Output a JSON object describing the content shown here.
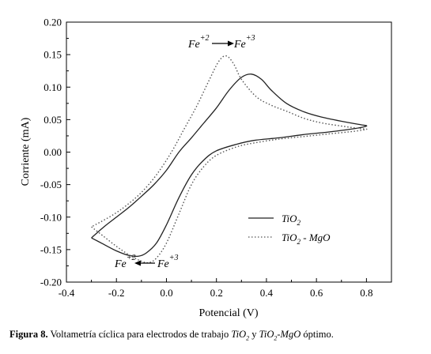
{
  "chart_data": {
    "type": "line",
    "xlabel": "Potencial (V)",
    "ylabel": "Corriente (mA)",
    "xlim": [
      -0.4,
      0.9
    ],
    "ylim": [
      -0.2,
      0.2
    ],
    "x_ticks": [
      -0.4,
      -0.2,
      0.0,
      0.2,
      0.4,
      0.6,
      0.8
    ],
    "y_ticks": [
      -0.2,
      -0.15,
      -0.1,
      -0.05,
      0.0,
      0.05,
      0.1,
      0.15,
      0.2
    ],
    "x_tick_labels": [
      "-0.4",
      "-0.2",
      "0.0",
      "0.2",
      "0.4",
      "0.6",
      "0.8"
    ],
    "y_tick_labels": [
      "-0.20",
      "-0.15",
      "-0.10",
      "-0.05",
      "0.00",
      "0.05",
      "0.10",
      "0.15",
      "0.20"
    ],
    "grid": false,
    "legend_position": "bottom-right",
    "series": [
      {
        "name": "TiO2",
        "style": "solid",
        "color": "#222222",
        "points": [
          [
            -0.3,
            -0.132
          ],
          [
            -0.26,
            -0.14
          ],
          [
            -0.2,
            -0.152
          ],
          [
            -0.15,
            -0.159
          ],
          [
            -0.11,
            -0.16
          ],
          [
            -0.08,
            -0.155
          ],
          [
            -0.04,
            -0.14
          ],
          [
            0.0,
            -0.112
          ],
          [
            0.05,
            -0.07
          ],
          [
            0.1,
            -0.035
          ],
          [
            0.15,
            -0.012
          ],
          [
            0.2,
            0.002
          ],
          [
            0.28,
            0.012
          ],
          [
            0.35,
            0.018
          ],
          [
            0.45,
            0.022
          ],
          [
            0.55,
            0.027
          ],
          [
            0.65,
            0.031
          ],
          [
            0.75,
            0.036
          ],
          [
            0.8,
            0.04
          ],
          [
            0.78,
            0.042
          ],
          [
            0.72,
            0.046
          ],
          [
            0.62,
            0.054
          ],
          [
            0.55,
            0.062
          ],
          [
            0.48,
            0.075
          ],
          [
            0.42,
            0.095
          ],
          [
            0.38,
            0.112
          ],
          [
            0.34,
            0.12
          ],
          [
            0.3,
            0.115
          ],
          [
            0.25,
            0.095
          ],
          [
            0.2,
            0.068
          ],
          [
            0.15,
            0.045
          ],
          [
            0.1,
            0.022
          ],
          [
            0.05,
            0.0
          ],
          [
            0.0,
            -0.028
          ],
          [
            -0.05,
            -0.05
          ],
          [
            -0.1,
            -0.068
          ],
          [
            -0.15,
            -0.085
          ],
          [
            -0.2,
            -0.1
          ],
          [
            -0.25,
            -0.115
          ],
          [
            -0.3,
            -0.132
          ]
        ]
      },
      {
        "name": "TiO2 - MgO",
        "style": "dotted",
        "color": "#555555",
        "points": [
          [
            -0.3,
            -0.115
          ],
          [
            -0.25,
            -0.13
          ],
          [
            -0.2,
            -0.145
          ],
          [
            -0.15,
            -0.158
          ],
          [
            -0.1,
            -0.168
          ],
          [
            -0.07,
            -0.17
          ],
          [
            -0.04,
            -0.163
          ],
          [
            0.0,
            -0.14
          ],
          [
            0.05,
            -0.095
          ],
          [
            0.1,
            -0.05
          ],
          [
            0.15,
            -0.022
          ],
          [
            0.2,
            -0.005
          ],
          [
            0.28,
            0.008
          ],
          [
            0.35,
            0.014
          ],
          [
            0.45,
            0.02
          ],
          [
            0.55,
            0.024
          ],
          [
            0.65,
            0.028
          ],
          [
            0.75,
            0.032
          ],
          [
            0.8,
            0.035
          ],
          [
            0.78,
            0.036
          ],
          [
            0.72,
            0.039
          ],
          [
            0.62,
            0.045
          ],
          [
            0.55,
            0.052
          ],
          [
            0.48,
            0.063
          ],
          [
            0.42,
            0.072
          ],
          [
            0.36,
            0.085
          ],
          [
            0.3,
            0.112
          ],
          [
            0.27,
            0.135
          ],
          [
            0.24,
            0.148
          ],
          [
            0.21,
            0.14
          ],
          [
            0.17,
            0.11
          ],
          [
            0.12,
            0.07
          ],
          [
            0.07,
            0.035
          ],
          [
            0.02,
            0.0
          ],
          [
            -0.04,
            -0.035
          ],
          [
            -0.1,
            -0.062
          ],
          [
            -0.16,
            -0.082
          ],
          [
            -0.22,
            -0.098
          ],
          [
            -0.3,
            -0.115
          ]
        ]
      }
    ],
    "annotations": {
      "top": {
        "from_base": "Fe",
        "from_sup": "+2",
        "to_base": "Fe",
        "to_sup": "+3"
      },
      "bottom": {
        "from_base": "Fe",
        "from_sup": "+2",
        "to_base": "Fe",
        "to_sup": "+3"
      }
    },
    "legend": {
      "tio2_base": "TiO",
      "tio2_sub": "2",
      "mix_base": "TiO",
      "mix_sub": "2",
      "mix_rest": " - MgO"
    }
  },
  "caption": {
    "label": "Figura 8.",
    "text1": " Voltametría cíclica para electrodos de trabajo ",
    "m1_base": "TiO",
    "m1_sub": "2",
    "text2": " y ",
    "m2_base": "TiO",
    "m2_sub": "2",
    "m2_rest": "-MgO",
    "text3": " óptimo."
  }
}
